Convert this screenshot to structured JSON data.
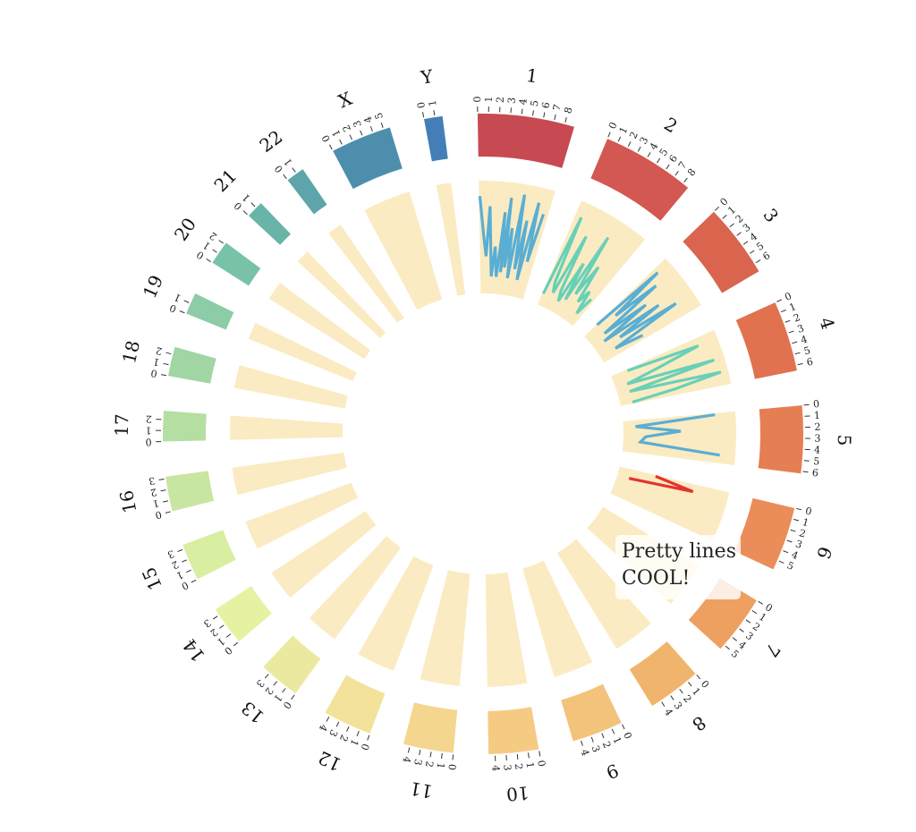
{
  "chart_data": {
    "type": "circos",
    "title": "",
    "chromosomes": [
      {
        "name": "1",
        "length": 8.9,
        "color": "#c74a52",
        "ticks": [
          "0",
          "1",
          "2",
          "3",
          "4",
          "5",
          "6",
          "7",
          "8"
        ]
      },
      {
        "name": "2",
        "length": 8.6,
        "color": "#d25851",
        "ticks": [
          "0",
          "1",
          "2",
          "3",
          "4",
          "5",
          "6",
          "7",
          "8"
        ]
      },
      {
        "name": "3",
        "length": 6.8,
        "color": "#d9654f",
        "ticks": [
          "0",
          "1",
          "2",
          "3",
          "4",
          "5",
          "6"
        ]
      },
      {
        "name": "4",
        "length": 6.5,
        "color": "#e0724f",
        "ticks": [
          "0",
          "1",
          "2",
          "3",
          "4",
          "5",
          "6"
        ]
      },
      {
        "name": "5",
        "length": 6.2,
        "color": "#e57f53",
        "ticks": [
          "0",
          "1",
          "2",
          "3",
          "4",
          "5",
          "6"
        ]
      },
      {
        "name": "6",
        "length": 5.9,
        "color": "#ea8d59",
        "ticks": [
          "0",
          "1",
          "2",
          "3",
          "4",
          "5"
        ]
      },
      {
        "name": "7",
        "length": 5.5,
        "color": "#eea060",
        "ticks": [
          "0",
          "1",
          "2",
          "3",
          "4",
          "5"
        ]
      },
      {
        "name": "8",
        "length": 4.9,
        "color": "#f1b46c",
        "ticks": [
          "0",
          "1",
          "2",
          "3",
          "4"
        ]
      },
      {
        "name": "9",
        "length": 4.7,
        "color": "#f3c27b",
        "ticks": [
          "0",
          "1",
          "2",
          "3",
          "4"
        ]
      },
      {
        "name": "10",
        "length": 4.6,
        "color": "#f5cb84",
        "ticks": [
          "0",
          "1",
          "2",
          "3",
          "4"
        ]
      },
      {
        "name": "11",
        "length": 4.6,
        "color": "#f5d68e",
        "ticks": [
          "0",
          "1",
          "2",
          "3",
          "4"
        ]
      },
      {
        "name": "12",
        "length": 4.5,
        "color": "#f2e29a",
        "ticks": [
          "0",
          "1",
          "2",
          "3",
          "4"
        ]
      },
      {
        "name": "13",
        "length": 3.8,
        "color": "#ebe9a0",
        "ticks": [
          "0",
          "1",
          "2",
          "3"
        ]
      },
      {
        "name": "14",
        "length": 3.6,
        "color": "#e6f2a2",
        "ticks": [
          "0",
          "1",
          "2",
          "3"
        ]
      },
      {
        "name": "15",
        "length": 3.4,
        "color": "#d8eea0",
        "ticks": [
          "0",
          "1",
          "2",
          "3"
        ]
      },
      {
        "name": "16",
        "length": 3.2,
        "color": "#c8e6a1",
        "ticks": [
          "0",
          "1",
          "2",
          "3"
        ]
      },
      {
        "name": "17",
        "length": 2.8,
        "color": "#b5dea2",
        "ticks": [
          "0",
          "1",
          "2"
        ]
      },
      {
        "name": "18",
        "length": 2.7,
        "color": "#a1d6a4",
        "ticks": [
          "0",
          "1",
          "2"
        ]
      },
      {
        "name": "19",
        "length": 2.0,
        "color": "#8ccca6",
        "ticks": [
          "0",
          "1"
        ]
      },
      {
        "name": "20",
        "length": 2.2,
        "color": "#78c2a8",
        "ticks": [
          "0",
          "1",
          "2"
        ]
      },
      {
        "name": "21",
        "length": 1.6,
        "color": "#68b4a9",
        "ticks": [
          "0",
          "1"
        ]
      },
      {
        "name": "22",
        "length": 1.7,
        "color": "#5da5aa",
        "ticks": [
          "0",
          "1"
        ]
      },
      {
        "name": "X",
        "length": 5.6,
        "color": "#4d8ead",
        "ticks": [
          "0",
          "1",
          "2",
          "3",
          "4",
          "5"
        ]
      },
      {
        "name": "Y",
        "length": 1.7,
        "color": "#437fb6",
        "ticks": [
          "0",
          "1"
        ]
      }
    ],
    "track_color": "#fbebc2",
    "lines": [
      {
        "chromosome": "1",
        "color": "#5aaed4",
        "points": [
          [
            0.1,
            0.9
          ],
          [
            0.6,
            0.5
          ],
          [
            1.0,
            0.3
          ],
          [
            1.4,
            0.8
          ],
          [
            2.0,
            0.1
          ],
          [
            2.4,
            0.4
          ],
          [
            2.9,
            0.1
          ],
          [
            3.4,
            0.75
          ],
          [
            3.6,
            0.15
          ],
          [
            4.0,
            0.9
          ],
          [
            4.2,
            0.2
          ],
          [
            4.6,
            0.6
          ],
          [
            5.0,
            0.1
          ],
          [
            5.5,
            0.95
          ],
          [
            6.0,
            0.2
          ],
          [
            6.4,
            0.7
          ],
          [
            6.8,
            0.1
          ],
          [
            7.4,
            0.9
          ],
          [
            7.8,
            0.3
          ],
          [
            8.3,
            0.8
          ]
        ]
      },
      {
        "chromosome": "2",
        "color": "#69d0b8",
        "points": [
          [
            0.2,
            0.05
          ],
          [
            0.8,
            0.9
          ],
          [
            1.3,
            0.2
          ],
          [
            1.8,
            0.1
          ],
          [
            2.4,
            0.75
          ],
          [
            2.9,
            0.15
          ],
          [
            3.4,
            0.05
          ],
          [
            3.9,
            0.5
          ],
          [
            4.4,
            0.1
          ],
          [
            4.9,
            0.85
          ],
          [
            5.4,
            0.2
          ],
          [
            6.0,
            0.55
          ],
          [
            6.5,
            0.15
          ],
          [
            7.1,
            0.3
          ],
          [
            7.6,
            0.05
          ],
          [
            8.1,
            0.25
          ]
        ]
      },
      {
        "chromosome": "3",
        "color": "#5aaed4",
        "points": [
          [
            0.1,
            0.1
          ],
          [
            0.6,
            0.9
          ],
          [
            1.1,
            0.3
          ],
          [
            1.7,
            0.8
          ],
          [
            2.2,
            0.1
          ],
          [
            2.8,
            0.6
          ],
          [
            3.3,
            0.05
          ],
          [
            3.9,
            0.7
          ],
          [
            4.4,
            0.2
          ],
          [
            5.0,
            0.85
          ],
          [
            5.6,
            0.1
          ],
          [
            6.2,
            0.4
          ]
        ]
      },
      {
        "chromosome": "4",
        "color": "#69d0b8",
        "points": [
          [
            0.3,
            0.1
          ],
          [
            1.0,
            0.85
          ],
          [
            1.8,
            0.4
          ],
          [
            2.6,
            0.05
          ],
          [
            3.3,
            0.95
          ],
          [
            4.1,
            0.05
          ],
          [
            4.9,
            0.98
          ],
          [
            5.6,
            0.5
          ],
          [
            6.2,
            0.05
          ]
        ]
      },
      {
        "chromosome": "5",
        "color": "#5aaed4",
        "points": [
          [
            0.2,
            0.85
          ],
          [
            1.2,
            0.05
          ],
          [
            2.2,
            0.5
          ],
          [
            3.1,
            0.15
          ],
          [
            4.1,
            0.1
          ],
          [
            5.2,
            0.9
          ]
        ]
      },
      {
        "chromosome": "6",
        "color": "#e3342e",
        "points": [
          [
            0.2,
            0.3
          ],
          [
            1.0,
            0.7
          ],
          [
            1.8,
            0.05
          ]
        ]
      }
    ],
    "annotation": {
      "line1": "Pretty lines",
      "line2": "COOL!"
    }
  }
}
